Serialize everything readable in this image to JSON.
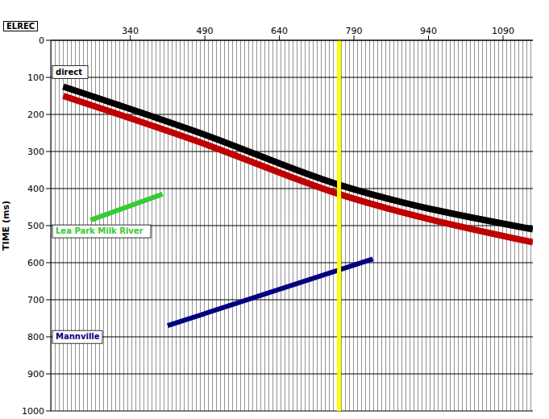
{
  "chart_data": {
    "type": "line",
    "x_label": "ELREC",
    "y_label": "TIME (ms)",
    "xlim": [
      180,
      1150
    ],
    "xticks": [
      340,
      490,
      640,
      790,
      940,
      1090
    ],
    "ylim": [
      0,
      1000
    ],
    "yticks": [
      0,
      100,
      200,
      300,
      400,
      500,
      600,
      700,
      800,
      900,
      1000
    ],
    "grid": true,
    "series": [
      {
        "name": "direct",
        "color": "#000000",
        "x": [
          205,
          480,
          760,
          1150
        ],
        "values": [
          125,
          250,
          390,
          510
        ]
      },
      {
        "color": "#c00000",
        "x": [
          205,
          480,
          760,
          1150
        ],
        "values": [
          150,
          275,
          415,
          545
        ]
      },
      {
        "name": "Lea Park Milk River",
        "color": "#33cc33",
        "x": [
          260,
          405
        ],
        "values": [
          485,
          415
        ]
      },
      {
        "name": "Mannville",
        "color": "#000080",
        "x": [
          415,
          828
        ],
        "values": [
          770,
          590
        ]
      }
    ],
    "reference_lines": [
      {
        "x": 760,
        "color": "#ffff00"
      }
    ]
  }
}
